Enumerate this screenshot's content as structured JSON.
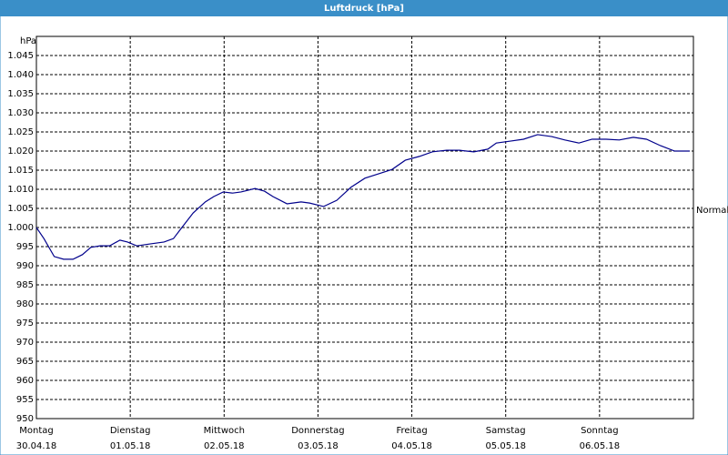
{
  "chart_data": {
    "type": "line",
    "title": "Luftdruck [hPa]",
    "y_label": "hPa",
    "annotation": {
      "text": "Normal",
      "value": 1004.5
    },
    "x": [
      0,
      0.08,
      0.19,
      0.29,
      0.39,
      0.49,
      0.58,
      0.68,
      0.78,
      0.89,
      0.97,
      1.07,
      1.21,
      1.36,
      1.46,
      1.55,
      1.67,
      1.8,
      1.89,
      1.99,
      2.09,
      2.18,
      2.33,
      2.43,
      2.52,
      2.67,
      2.82,
      2.91,
      3.06,
      3.2,
      3.35,
      3.5,
      3.64,
      3.79,
      3.93,
      4.08,
      4.22,
      4.37,
      4.51,
      4.66,
      4.81,
      4.9,
      5.05,
      5.19,
      5.34,
      5.49,
      5.63,
      5.78,
      5.92,
      6.07,
      6.21,
      6.36,
      6.5,
      6.65,
      6.8,
      6.89,
      6.96
    ],
    "series": [
      {
        "name": "Luftdruck",
        "color": "#00008b",
        "values": [
          1000,
          997.1,
          992.4,
          991.7,
          991.7,
          992.9,
          994.8,
          995.2,
          995.2,
          996.7,
          996.2,
          995.2,
          995.7,
          996.2,
          997.1,
          1000,
          1003.8,
          1006.7,
          1008.1,
          1009.3,
          1009,
          1009.3,
          1010.2,
          1009.5,
          1008.1,
          1006.2,
          1006.7,
          1006.4,
          1005.5,
          1007.1,
          1010.5,
          1012.9,
          1014,
          1015.2,
          1017.6,
          1018.6,
          1019.8,
          1020.2,
          1020.2,
          1019.8,
          1020.5,
          1022.1,
          1022.6,
          1023.1,
          1024.3,
          1023.8,
          1022.9,
          1022.1,
          1023.1,
          1023.1,
          1022.9,
          1023.6,
          1023.1,
          1021.4,
          1020,
          1020,
          1020
        ]
      }
    ],
    "xlim": [
      0,
      7
    ],
    "xticks": [
      {
        "value": 0,
        "label": "Montag"
      },
      {
        "value": 1,
        "label": "Dienstag"
      },
      {
        "value": 2,
        "label": "Mittwoch"
      },
      {
        "value": 3,
        "label": "Donnerstag"
      },
      {
        "value": 4,
        "label": "Freitag"
      },
      {
        "value": 5,
        "label": "Samstag"
      },
      {
        "value": 6,
        "label": "Sonntag"
      }
    ],
    "xtick_dates": [
      "30.04.18",
      "01.05.18",
      "02.05.18",
      "03.05.18",
      "04.05.18",
      "05.05.18",
      "06.05.18"
    ],
    "ylim": [
      950,
      1050
    ],
    "yticks": [
      {
        "value": 950,
        "label": "950"
      },
      {
        "value": 955,
        "label": "955"
      },
      {
        "value": 960,
        "label": "960"
      },
      {
        "value": 965,
        "label": "965"
      },
      {
        "value": 970,
        "label": "970"
      },
      {
        "value": 975,
        "label": "975"
      },
      {
        "value": 980,
        "label": "980"
      },
      {
        "value": 985,
        "label": "985"
      },
      {
        "value": 990,
        "label": "990"
      },
      {
        "value": 995,
        "label": "995"
      },
      {
        "value": 1000,
        "label": "1.000"
      },
      {
        "value": 1005,
        "label": "1.005"
      },
      {
        "value": 1010,
        "label": "1.010"
      },
      {
        "value": 1015,
        "label": "1.015"
      },
      {
        "value": 1020,
        "label": "1.020"
      },
      {
        "value": 1025,
        "label": "1.025"
      },
      {
        "value": 1030,
        "label": "1.030"
      },
      {
        "value": 1035,
        "label": "1.035"
      },
      {
        "value": 1040,
        "label": "1.040"
      },
      {
        "value": 1045,
        "label": "1.045"
      }
    ],
    "grid": true
  }
}
